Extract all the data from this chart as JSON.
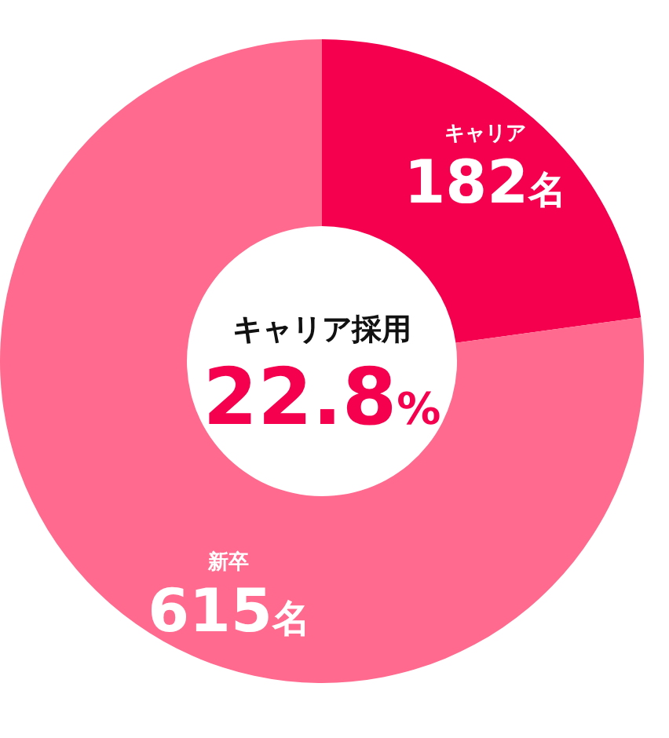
{
  "chart_data": {
    "type": "donut",
    "title": "キャリア採用",
    "annotations": [
      "22.8%"
    ],
    "categories": [
      "キャリア",
      "新卒"
    ],
    "values": [
      182,
      615
    ],
    "colors": [
      "#f5004f",
      "#ff6a8e"
    ],
    "value_labels": [
      "182名",
      "615名"
    ]
  }
}
